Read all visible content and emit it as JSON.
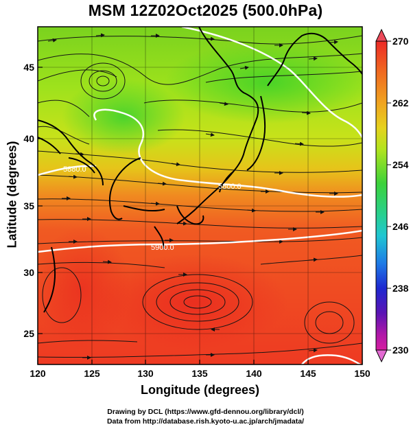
{
  "title": "MSM 12Z02Oct2025 (500.0hPa)",
  "x_axis": {
    "label": "Longitude (degrees)",
    "ticks": [
      "120",
      "125",
      "130",
      "135",
      "140",
      "145",
      "150"
    ]
  },
  "y_axis": {
    "label": "Latitude  (degrees)",
    "ticks": [
      "25",
      "30",
      "35",
      "40",
      "45"
    ]
  },
  "colorbar": {
    "ticks": [
      "270",
      "262",
      "254",
      "246",
      "238",
      "230"
    ],
    "colors": [
      "#e8205c",
      "#f05030",
      "#f08a20",
      "#d2c22a",
      "#a6e22a",
      "#30d23c",
      "#2ed0a0",
      "#1ea4e8",
      "#1e3ad2",
      "#7a14b4",
      "#d61ea0"
    ]
  },
  "contour_labels": [
    "5880.0",
    "5800.0",
    "5900.0"
  ],
  "credits": {
    "drawing": "Drawing by DCL (https://www.gfd-dennou.org/library/dcl/)",
    "data": "Data from http://database.rish.kyoto-u.ac.jp/arch/jmadata/"
  }
}
